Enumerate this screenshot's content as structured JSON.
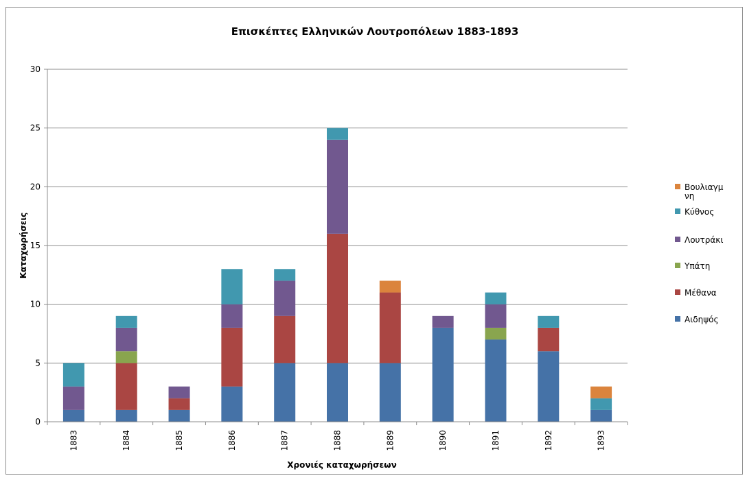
{
  "chart_data": {
    "type": "bar",
    "stacked": true,
    "title": "Επισκέπτες Ελληνικών Λουτροπόλεων 1883-1893",
    "xlabel": "Χρονιές καταχωρήσεων",
    "ylabel": "Καταχωρήσεις",
    "ylim": [
      0,
      30
    ],
    "yticks": [
      0,
      5,
      10,
      15,
      20,
      25,
      30
    ],
    "grid": true,
    "legend_position": "right",
    "categories": [
      "1883",
      "1884",
      "1885",
      "1886",
      "1887",
      "1888",
      "1889",
      "1890",
      "1891",
      "1892",
      "1893"
    ],
    "series": [
      {
        "name": "Αιδηψός",
        "color": "#4572A7",
        "values": [
          1,
          1,
          1,
          3,
          5,
          5,
          5,
          8,
          7,
          6,
          1
        ]
      },
      {
        "name": "Μέθανα",
        "color": "#AA4643",
        "values": [
          0,
          4,
          1,
          5,
          4,
          11,
          6,
          0,
          0,
          2,
          0
        ]
      },
      {
        "name": "Υπάτη",
        "color": "#89A54E",
        "values": [
          0,
          1,
          0,
          0,
          0,
          0,
          0,
          0,
          1,
          0,
          0
        ]
      },
      {
        "name": "Λουτράκι",
        "color": "#71588F",
        "values": [
          2,
          2,
          1,
          2,
          3,
          8,
          0,
          1,
          2,
          0,
          0
        ]
      },
      {
        "name": "Κύθνος",
        "color": "#4198AF",
        "values": [
          2,
          1,
          0,
          3,
          1,
          1,
          0,
          0,
          1,
          1,
          1
        ]
      },
      {
        "name": "Βουλιαγμένη",
        "color": "#DB843D",
        "values": [
          0,
          0,
          0,
          0,
          0,
          0,
          1,
          0,
          0,
          0,
          1
        ]
      }
    ],
    "legend_labels": [
      [
        "Βουλιαγμ",
        "νη"
      ],
      [
        "Κύθνος"
      ],
      [
        "Λουτράκι"
      ],
      [
        "Υπάτη"
      ],
      [
        "Μέθανα"
      ],
      [
        "Αιδηψός"
      ]
    ]
  }
}
